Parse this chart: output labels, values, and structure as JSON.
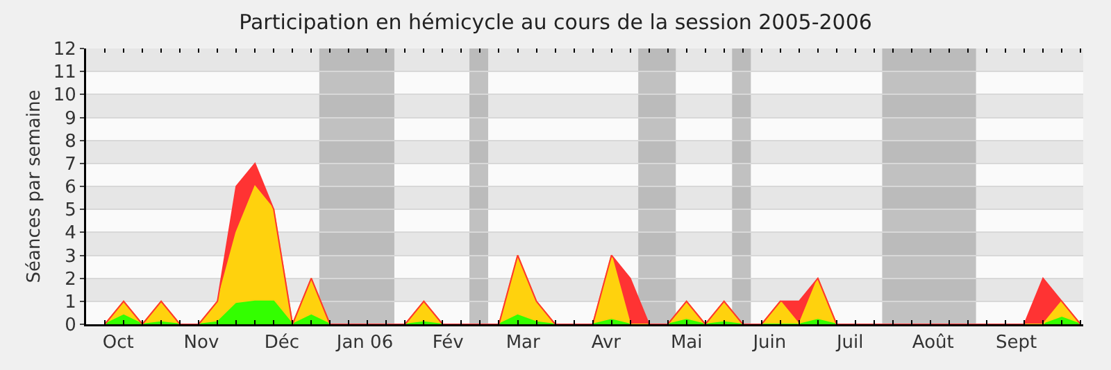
{
  "chart_data": {
    "type": "area",
    "title": "Participation en hémicycle au cours de la session 2005-2006",
    "ylabel": "Séances par semaine",
    "stacked": true,
    "grid": "y",
    "x": [
      "2005-09-26",
      "2005-10-03",
      "2005-10-10",
      "2005-10-17",
      "2005-10-24",
      "2005-10-31",
      "2005-11-07",
      "2005-11-14",
      "2005-11-21",
      "2005-11-28",
      "2005-12-05",
      "2005-12-12",
      "2005-12-19",
      "2005-12-26",
      "2006-01-02",
      "2006-01-09",
      "2006-01-16",
      "2006-01-23",
      "2006-01-30",
      "2006-02-06",
      "2006-02-13",
      "2006-02-20",
      "2006-02-27",
      "2006-03-06",
      "2006-03-13",
      "2006-03-20",
      "2006-03-27",
      "2006-04-03",
      "2006-04-10",
      "2006-04-17",
      "2006-04-24",
      "2006-05-01",
      "2006-05-08",
      "2006-05-15",
      "2006-05-22",
      "2006-05-29",
      "2006-06-05",
      "2006-06-12",
      "2006-06-19",
      "2006-06-26",
      "2006-07-03",
      "2006-07-10",
      "2006-07-17",
      "2006-07-24",
      "2006-07-31",
      "2006-08-07",
      "2006-08-14",
      "2006-08-21",
      "2006-08-28",
      "2006-09-04",
      "2006-09-11",
      "2006-09-18",
      "2006-09-25"
    ],
    "series": [
      {
        "color": "#33ff00",
        "values": [
          0,
          0.4,
          0,
          0.1,
          0,
          0,
          0.1,
          0.9,
          1,
          1,
          0,
          0.4,
          0,
          0,
          0,
          0,
          0,
          0.1,
          0,
          0,
          0,
          0,
          0.4,
          0.1,
          0,
          0,
          0,
          0.2,
          0,
          0,
          0,
          0.2,
          0,
          0.1,
          0,
          0,
          0,
          0,
          0.2,
          0,
          0,
          0,
          0,
          0,
          0,
          0,
          0,
          0,
          0,
          0,
          0,
          0.3,
          0
        ]
      },
      {
        "color": "#ffd20d",
        "values": [
          0,
          0.6,
          0,
          0.9,
          0,
          0,
          0.9,
          3.1,
          5,
          4,
          0,
          1.6,
          0,
          0,
          0,
          0,
          0,
          0.9,
          0,
          0,
          0,
          0,
          2.6,
          0.9,
          0,
          0,
          0,
          2.8,
          0,
          0,
          0,
          0.8,
          0,
          0.9,
          0,
          0,
          1,
          0,
          1.8,
          0,
          0,
          0,
          0,
          0,
          0,
          0,
          0,
          0,
          0,
          0,
          0,
          0.7,
          0
        ]
      },
      {
        "color": "#ff3333",
        "values": [
          0,
          0,
          0,
          0,
          0,
          0,
          0,
          2,
          1,
          0,
          0,
          0,
          0,
          0,
          0,
          0,
          0,
          0,
          0,
          0,
          0,
          0,
          0,
          0,
          0,
          0,
          0,
          0,
          2,
          0,
          0,
          0,
          0,
          0,
          0,
          0,
          0,
          1,
          0,
          0,
          0,
          0,
          0,
          0,
          0,
          0,
          0,
          0,
          0,
          0,
          2,
          0,
          0
        ]
      }
    ],
    "xlim": [
      "2005-09-19",
      "2006-09-26"
    ],
    "xticks": [
      {
        "value": "2005-09-19",
        "label": null
      },
      {
        "value": "2005-09-26",
        "label": null
      },
      {
        "value": "2005-10-03",
        "label": null
      },
      {
        "value": "2005-10-10",
        "label": null
      },
      {
        "value": "2005-10-17",
        "label": null
      },
      {
        "value": "2005-10-24",
        "label": null
      },
      {
        "value": "2005-10-31",
        "label": null
      },
      {
        "value": "2005-11-07",
        "label": null
      },
      {
        "value": "2005-11-14",
        "label": null
      },
      {
        "value": "2005-11-21",
        "label": null
      },
      {
        "value": "2005-11-28",
        "label": null
      },
      {
        "value": "2005-12-05",
        "label": null
      },
      {
        "value": "2005-12-12",
        "label": null
      },
      {
        "value": "2005-12-19",
        "label": null
      },
      {
        "value": "2005-12-26",
        "label": null
      },
      {
        "value": "2006-01-02",
        "label": null
      },
      {
        "value": "2006-01-09",
        "label": null
      },
      {
        "value": "2006-01-16",
        "label": null
      },
      {
        "value": "2006-01-23",
        "label": null
      },
      {
        "value": "2006-01-30",
        "label": null
      },
      {
        "value": "2006-02-06",
        "label": null
      },
      {
        "value": "2006-02-13",
        "label": null
      },
      {
        "value": "2006-02-20",
        "label": null
      },
      {
        "value": "2006-02-27",
        "label": null
      },
      {
        "value": "2006-03-06",
        "label": null
      },
      {
        "value": "2006-03-13",
        "label": null
      },
      {
        "value": "2006-03-20",
        "label": null
      },
      {
        "value": "2006-03-27",
        "label": null
      },
      {
        "value": "2006-04-03",
        "label": null
      },
      {
        "value": "2006-04-10",
        "label": null
      },
      {
        "value": "2006-04-17",
        "label": null
      },
      {
        "value": "2006-04-24",
        "label": null
      },
      {
        "value": "2006-05-01",
        "label": null
      },
      {
        "value": "2006-05-08",
        "label": null
      },
      {
        "value": "2006-05-15",
        "label": null
      },
      {
        "value": "2006-05-22",
        "label": null
      },
      {
        "value": "2006-05-29",
        "label": null
      },
      {
        "value": "2006-06-05",
        "label": null
      },
      {
        "value": "2006-06-12",
        "label": null
      },
      {
        "value": "2006-06-19",
        "label": null
      },
      {
        "value": "2006-06-26",
        "label": null
      },
      {
        "value": "2006-07-03",
        "label": null
      },
      {
        "value": "2006-07-10",
        "label": null
      },
      {
        "value": "2006-07-17",
        "label": null
      },
      {
        "value": "2006-07-24",
        "label": null
      },
      {
        "value": "2006-07-31",
        "label": null
      },
      {
        "value": "2006-08-07",
        "label": null
      },
      {
        "value": "2006-08-14",
        "label": null
      },
      {
        "value": "2006-08-21",
        "label": null
      },
      {
        "value": "2006-08-28",
        "label": null
      },
      {
        "value": "2006-09-04",
        "label": null
      },
      {
        "value": "2006-09-11",
        "label": null
      },
      {
        "value": "2006-09-18",
        "label": null
      },
      {
        "value": "2006-09-25",
        "label": null
      },
      {
        "value": "2005-10-01",
        "label": "Oct"
      },
      {
        "value": "2005-11-01",
        "label": "Nov"
      },
      {
        "value": "2005-12-01",
        "label": "Déc"
      },
      {
        "value": "2006-01-01",
        "label": "Jan 06"
      },
      {
        "value": "2006-02-01",
        "label": "Fév"
      },
      {
        "value": "2006-03-01",
        "label": "Mar"
      },
      {
        "value": "2006-04-01",
        "label": "Avr"
      },
      {
        "value": "2006-05-01",
        "label": "Mai"
      },
      {
        "value": "2006-06-01",
        "label": "Juin"
      },
      {
        "value": "2006-07-01",
        "label": "Juil"
      },
      {
        "value": "2006-08-01",
        "label": "Août"
      },
      {
        "value": "2006-09-01",
        "label": "Sept"
      }
    ],
    "ylim": [
      0,
      12
    ],
    "yticks": [
      0,
      1,
      2,
      3,
      4,
      5,
      6,
      7,
      8,
      9,
      10,
      11,
      12
    ],
    "bands": [
      {
        "axis": "x",
        "from": "2005-12-15",
        "to": "2006-01-12",
        "color": "#a8a8a8"
      },
      {
        "axis": "x",
        "from": "2006-02-09",
        "to": "2006-02-16",
        "color": "#a8a8a8"
      },
      {
        "axis": "x",
        "from": "2006-04-13",
        "to": "2006-04-27",
        "color": "#a8a8a8"
      },
      {
        "axis": "x",
        "from": "2006-05-18",
        "to": "2006-05-25",
        "color": "#a8a8a8"
      },
      {
        "axis": "x",
        "from": "2006-07-13",
        "to": "2006-08-17",
        "color": "#a8a8a8"
      }
    ]
  }
}
